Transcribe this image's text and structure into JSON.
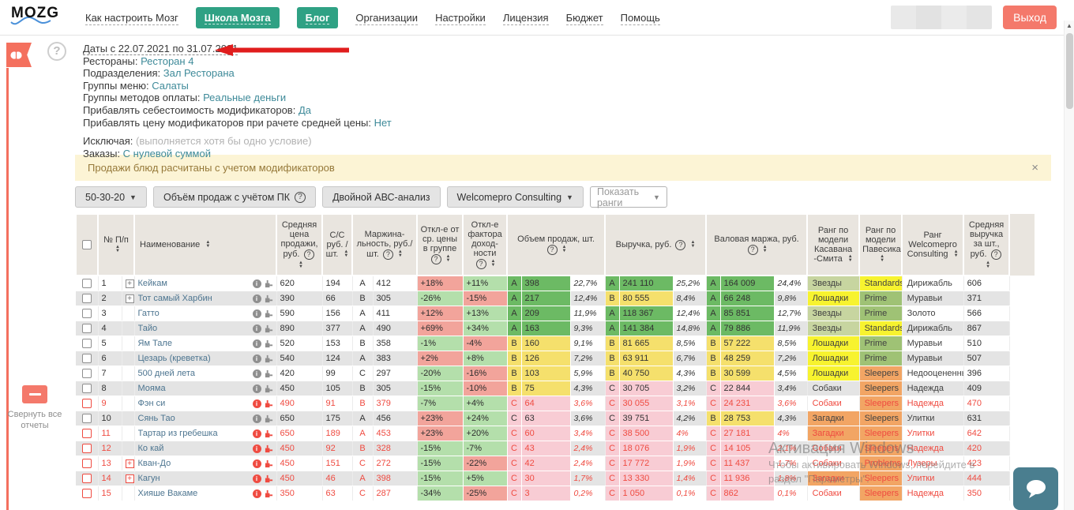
{
  "navbar": {
    "logo": "MOZG",
    "links": [
      {
        "label": "Как настроить Мозг",
        "style": "plain"
      },
      {
        "label": "Школа Мозга",
        "style": "green"
      },
      {
        "label": "Блог",
        "style": "green"
      },
      {
        "label": "Организации",
        "style": "plain"
      },
      {
        "label": "Настройки",
        "style": "plain"
      },
      {
        "label": "Лицензия",
        "style": "plain"
      },
      {
        "label": "Бюджет",
        "style": "plain"
      },
      {
        "label": "Помощь",
        "style": "plain"
      }
    ],
    "logout_label": "Выход"
  },
  "sidebar": {
    "collapse_label": "Свернуть все отчеты"
  },
  "filters": {
    "date_line": "Даты с 22.07.2021 по 31.07.2021",
    "lines": [
      {
        "label": "Рестораны:",
        "value": "Ресторан 4"
      },
      {
        "label": "Подразделения:",
        "value": "Зал Ресторана"
      },
      {
        "label": "Группы меню:",
        "value": "Салаты"
      },
      {
        "label": "Группы методов оплаты:",
        "value": "Реальные деньги"
      },
      {
        "label": "Прибавлять себестоимость модификаторов:",
        "value": "Да"
      },
      {
        "label": "Прибавлять цену модификаторов при рачете средней цены:",
        "value": "Нет"
      }
    ],
    "excluding_label": "Исключая:",
    "excluding_note": "(выполняется хотя бы одно условие)",
    "orders_label": "Заказы:",
    "orders_value": "С нулевой суммой"
  },
  "banner": {
    "text": "Продажи блюд расчитаны с учетом модификаторов",
    "close": "×"
  },
  "toolbar": {
    "buttons": [
      {
        "label": "50-30-20",
        "caret": true
      },
      {
        "label": "Объём продаж с учётом ПК",
        "help": true
      },
      {
        "label": "Двойной АВС-анализ"
      },
      {
        "label": "Welcomepro Consulting",
        "caret": true
      }
    ],
    "select_placeholder": "Показать ранги"
  },
  "table": {
    "headers": [
      {
        "checkbox": true,
        "span": 1
      },
      {
        "label": "№ П/п",
        "sort": true,
        "span": 2
      },
      {
        "label": "Наименование",
        "sort": true,
        "span": 1,
        "align": "left"
      },
      {
        "label": "Средняя цена продажи, руб.",
        "sort": true,
        "help": true,
        "span": 1
      },
      {
        "label": "С/С руб. /шт.",
        "sort": true,
        "span": 1
      },
      {
        "label": "Маржина- льность, руб./шт.",
        "sort": true,
        "help": true,
        "span": 2
      },
      {
        "label": "Откл-е от ср. цены в группе",
        "sort": true,
        "help": true,
        "span": 1
      },
      {
        "label": "Откл-е фактора доход- ности",
        "sort": true,
        "help": true,
        "span": 1
      },
      {
        "label": "Объем продаж, шт.",
        "sort": true,
        "help": true,
        "span": 3,
        "gsep": true
      },
      {
        "label": "Выручка, руб.",
        "sort": true,
        "help": true,
        "span": 3
      },
      {
        "label": "Валовая маржа, руб.",
        "sort": true,
        "help": true,
        "span": 3
      },
      {
        "label": "Ранг по модели Касавана -Смита",
        "sort": true,
        "span": 1,
        "gsep": true
      },
      {
        "label": "Ранг по модели Павесика",
        "sort": true,
        "span": 1
      },
      {
        "label": "Ранг Welcomepro Consulting",
        "sort": true,
        "span": 1
      },
      {
        "label": "Средняя выручка за шт., руб.",
        "sort": true,
        "help": true,
        "span": 1
      }
    ],
    "rows": [
      {
        "num": "1",
        "flagged": false,
        "expandable": true,
        "name": "Кейкам",
        "avg_price": "620",
        "cost": "194",
        "margin_letter": "A",
        "margin": "412",
        "dev_price": {
          "v": "+18%",
          "c": "red"
        },
        "dev_profit": {
          "v": "+11%",
          "c": "green"
        },
        "vol": {
          "l": "A",
          "v": "398",
          "p": "22,7%"
        },
        "rev": {
          "l": "A",
          "v": "241 110",
          "p": "25,2%"
        },
        "gross": {
          "l": "A",
          "v": "164 009",
          "p": "24,4%"
        },
        "rank_ks": {
          "t": "Звезды",
          "bg": "olive"
        },
        "rank_pv": {
          "t": "Standards",
          "bg": "yellow"
        },
        "rank_wp": "Дирижабль",
        "avg_rev": "606"
      },
      {
        "num": "2",
        "flagged": false,
        "expandable": true,
        "name": "Тот самый Харбин",
        "avg_price": "390",
        "cost": "66",
        "margin_letter": "B",
        "margin": "305",
        "dev_price": {
          "v": "-26%",
          "c": "green"
        },
        "dev_profit": {
          "v": "-15%",
          "c": "red"
        },
        "vol": {
          "l": "A",
          "v": "217",
          "p": "12,4%"
        },
        "rev": {
          "l": "B",
          "v": "80 555",
          "p": "8,4%"
        },
        "gross": {
          "l": "A",
          "v": "66 248",
          "p": "9,8%"
        },
        "rank_ks": {
          "t": "Лошадки",
          "bg": "yellow"
        },
        "rank_pv": {
          "t": "Prime",
          "bg": "green"
        },
        "rank_wp": "Муравьи",
        "avg_rev": "371"
      },
      {
        "num": "3",
        "flagged": false,
        "expandable": false,
        "name": "Гатто",
        "avg_price": "590",
        "cost": "156",
        "margin_letter": "A",
        "margin": "411",
        "dev_price": {
          "v": "+12%",
          "c": "red"
        },
        "dev_profit": {
          "v": "+13%",
          "c": "green"
        },
        "vol": {
          "l": "A",
          "v": "209",
          "p": "11,9%"
        },
        "rev": {
          "l": "A",
          "v": "118 367",
          "p": "12,4%"
        },
        "gross": {
          "l": "A",
          "v": "85 851",
          "p": "12,7%"
        },
        "rank_ks": {
          "t": "Звезды",
          "bg": "olive"
        },
        "rank_pv": {
          "t": "Prime",
          "bg": "green"
        },
        "rank_wp": "Золото",
        "avg_rev": "566"
      },
      {
        "num": "4",
        "flagged": false,
        "expandable": false,
        "name": "Тайо",
        "avg_price": "890",
        "cost": "377",
        "margin_letter": "A",
        "margin": "490",
        "dev_price": {
          "v": "+69%",
          "c": "red"
        },
        "dev_profit": {
          "v": "+34%",
          "c": "green"
        },
        "vol": {
          "l": "A",
          "v": "163",
          "p": "9,3%"
        },
        "rev": {
          "l": "A",
          "v": "141 384",
          "p": "14,8%"
        },
        "gross": {
          "l": "A",
          "v": "79 886",
          "p": "11,9%"
        },
        "rank_ks": {
          "t": "Звезды",
          "bg": "olive"
        },
        "rank_pv": {
          "t": "Standards",
          "bg": "yellow"
        },
        "rank_wp": "Дирижабль",
        "avg_rev": "867"
      },
      {
        "num": "5",
        "flagged": false,
        "expandable": false,
        "name": "Ям Тале",
        "avg_price": "520",
        "cost": "153",
        "margin_letter": "B",
        "margin": "358",
        "dev_price": {
          "v": "-1%",
          "c": "green"
        },
        "dev_profit": {
          "v": "-4%",
          "c": "red"
        },
        "vol": {
          "l": "B",
          "v": "160",
          "p": "9,1%"
        },
        "rev": {
          "l": "B",
          "v": "81 665",
          "p": "8,5%"
        },
        "gross": {
          "l": "B",
          "v": "57 222",
          "p": "8,5%"
        },
        "rank_ks": {
          "t": "Лошадки",
          "bg": "yellow"
        },
        "rank_pv": {
          "t": "Prime",
          "bg": "green"
        },
        "rank_wp": "Муравьи",
        "avg_rev": "510"
      },
      {
        "num": "6",
        "flagged": false,
        "expandable": false,
        "name": "Цезарь (креветка)",
        "avg_price": "540",
        "cost": "124",
        "margin_letter": "A",
        "margin": "383",
        "dev_price": {
          "v": "+2%",
          "c": "red"
        },
        "dev_profit": {
          "v": "+8%",
          "c": "green"
        },
        "vol": {
          "l": "B",
          "v": "126",
          "p": "7,2%"
        },
        "rev": {
          "l": "B",
          "v": "63 911",
          "p": "6,7%"
        },
        "gross": {
          "l": "B",
          "v": "48 259",
          "p": "7,2%"
        },
        "rank_ks": {
          "t": "Лошадки",
          "bg": "yellow"
        },
        "rank_pv": {
          "t": "Prime",
          "bg": "green"
        },
        "rank_wp": "Муравьи",
        "avg_rev": "507"
      },
      {
        "num": "7",
        "flagged": false,
        "expandable": false,
        "name": "500 дней лета",
        "avg_price": "420",
        "cost": "99",
        "margin_letter": "C",
        "margin": "297",
        "dev_price": {
          "v": "-20%",
          "c": "green"
        },
        "dev_profit": {
          "v": "-16%",
          "c": "red"
        },
        "vol": {
          "l": "B",
          "v": "103",
          "p": "5,9%"
        },
        "rev": {
          "l": "B",
          "v": "40 750",
          "p": "4,3%"
        },
        "gross": {
          "l": "B",
          "v": "30 599",
          "p": "4,5%"
        },
        "rank_ks": {
          "t": "Лошадки",
          "bg": "yellow"
        },
        "rank_pv": {
          "t": "Sleepers",
          "bg": "orange"
        },
        "rank_wp": "Недооцененные",
        "avg_rev": "396"
      },
      {
        "num": "8",
        "flagged": false,
        "expandable": false,
        "name": "Мояма",
        "avg_price": "450",
        "cost": "105",
        "margin_letter": "B",
        "margin": "305",
        "dev_price": {
          "v": "-15%",
          "c": "green"
        },
        "dev_profit": {
          "v": "-10%",
          "c": "red"
        },
        "vol": {
          "l": "B",
          "v": "75",
          "p": "4,3%"
        },
        "rev": {
          "l": "C",
          "v": "30 705",
          "p": "3,2%"
        },
        "gross": {
          "l": "C",
          "v": "22 844",
          "p": "3,4%"
        },
        "rank_ks": {
          "t": "Собаки",
          "bg": "none"
        },
        "rank_pv": {
          "t": "Sleepers",
          "bg": "orange"
        },
        "rank_wp": "Надежда",
        "avg_rev": "409"
      },
      {
        "num": "9",
        "flagged": true,
        "expandable": false,
        "name": "Фэн си",
        "avg_price": "490",
        "cost": "91",
        "margin_letter": "B",
        "margin": "379",
        "dev_price": {
          "v": "-7%",
          "c": "green"
        },
        "dev_profit": {
          "v": "+4%",
          "c": "green"
        },
        "vol": {
          "l": "C",
          "v": "64",
          "p": "3,6%"
        },
        "rev": {
          "l": "C",
          "v": "30 055",
          "p": "3,1%"
        },
        "gross": {
          "l": "C",
          "v": "24 231",
          "p": "3,6%"
        },
        "rank_ks": {
          "t": "Собаки",
          "bg": "none"
        },
        "rank_pv": {
          "t": "Sleepers",
          "bg": "orange"
        },
        "rank_wp": "Надежда",
        "avg_rev": "470"
      },
      {
        "num": "10",
        "flagged": false,
        "expandable": false,
        "name": "Сянь Тао",
        "avg_price": "650",
        "cost": "175",
        "margin_letter": "A",
        "margin": "456",
        "dev_price": {
          "v": "+23%",
          "c": "red"
        },
        "dev_profit": {
          "v": "+24%",
          "c": "green"
        },
        "vol": {
          "l": "C",
          "v": "63",
          "p": "3,6%"
        },
        "rev": {
          "l": "C",
          "v": "39 751",
          "p": "4,2%"
        },
        "gross": {
          "l": "B",
          "v": "28 753",
          "p": "4,3%"
        },
        "rank_ks": {
          "t": "Загадки",
          "bg": "orange"
        },
        "rank_pv": {
          "t": "Sleepers",
          "bg": "orange"
        },
        "rank_wp": "Улитки",
        "avg_rev": "631"
      },
      {
        "num": "11",
        "flagged": true,
        "expandable": false,
        "name": "Тартар из гребешка",
        "avg_price": "650",
        "cost": "189",
        "margin_letter": "A",
        "margin": "453",
        "dev_price": {
          "v": "+23%",
          "c": "red"
        },
        "dev_profit": {
          "v": "+20%",
          "c": "green"
        },
        "vol": {
          "l": "C",
          "v": "60",
          "p": "3,4%"
        },
        "rev": {
          "l": "C",
          "v": "38 500",
          "p": "4%"
        },
        "gross": {
          "l": "C",
          "v": "27 181",
          "p": "4%"
        },
        "rank_ks": {
          "t": "Загадки",
          "bg": "orange"
        },
        "rank_pv": {
          "t": "Sleepers",
          "bg": "orange"
        },
        "rank_wp": "Улитки",
        "avg_rev": "642"
      },
      {
        "num": "12",
        "flagged": true,
        "expandable": false,
        "name": "Ко кай",
        "avg_price": "450",
        "cost": "92",
        "margin_letter": "B",
        "margin": "328",
        "dev_price": {
          "v": "-15%",
          "c": "green"
        },
        "dev_profit": {
          "v": "-7%",
          "c": "green"
        },
        "vol": {
          "l": "C",
          "v": "43",
          "p": "2,4%"
        },
        "rev": {
          "l": "C",
          "v": "18 076",
          "p": "1,9%"
        },
        "gross": {
          "l": "C",
          "v": "14 105",
          "p": "2,1%"
        },
        "rank_ks": {
          "t": "Собаки",
          "bg": "none"
        },
        "rank_pv": {
          "t": "Sleepers",
          "bg": "orange"
        },
        "rank_wp": "Надежда",
        "avg_rev": "420"
      },
      {
        "num": "13",
        "flagged": true,
        "expandable": true,
        "name": "Кван-До",
        "avg_price": "450",
        "cost": "151",
        "margin_letter": "C",
        "margin": "272",
        "dev_price": {
          "v": "-15%",
          "c": "green"
        },
        "dev_profit": {
          "v": "-22%",
          "c": "red"
        },
        "vol": {
          "l": "C",
          "v": "42",
          "p": "2,4%"
        },
        "rev": {
          "l": "C",
          "v": "17 772",
          "p": "1,9%"
        },
        "gross": {
          "l": "C",
          "v": "11 437",
          "p": "1,7%"
        },
        "rank_ks": {
          "t": "Собаки",
          "bg": "none"
        },
        "rank_pv": {
          "t": "Problems",
          "bg": "orange"
        },
        "rank_wp": "Лузеры",
        "avg_rev": "423"
      },
      {
        "num": "14",
        "flagged": true,
        "expandable": true,
        "name": "Кагун",
        "avg_price": "450",
        "cost": "46",
        "margin_letter": "A",
        "margin": "398",
        "dev_price": {
          "v": "-15%",
          "c": "green"
        },
        "dev_profit": {
          "v": "+5%",
          "c": "green"
        },
        "vol": {
          "l": "C",
          "v": "30",
          "p": "1,7%"
        },
        "rev": {
          "l": "C",
          "v": "13 330",
          "p": "1,4%"
        },
        "gross": {
          "l": "C",
          "v": "11 936",
          "p": "1,8%"
        },
        "rank_ks": {
          "t": "Загадки",
          "bg": "orange"
        },
        "rank_pv": {
          "t": "Sleepers",
          "bg": "orange"
        },
        "rank_wp": "Улитки",
        "avg_rev": "444"
      },
      {
        "num": "15",
        "flagged": true,
        "expandable": false,
        "name": "Хияше Вакаме",
        "avg_price": "350",
        "cost": "63",
        "margin_letter": "C",
        "margin": "287",
        "dev_price": {
          "v": "-34%",
          "c": "green"
        },
        "dev_profit": {
          "v": "-25%",
          "c": "red"
        },
        "vol": {
          "l": "C",
          "v": "3",
          "p": "0,2%"
        },
        "rev": {
          "l": "C",
          "v": "1 050",
          "p": "0,1%"
        },
        "gross": {
          "l": "C",
          "v": "862",
          "p": "0,1%"
        },
        "rank_ks": {
          "t": "Собаки",
          "bg": "none"
        },
        "rank_pv": {
          "t": "Sleepers",
          "bg": "orange"
        },
        "rank_wp": "Надежда",
        "avg_rev": "350"
      }
    ]
  },
  "watermark": {
    "line1": "Активация Windows",
    "line2": "Чтобы активировать Windows, перейдите в",
    "line3": "раздел \"Параметры\"."
  },
  "colors": {
    "brand-green": "#2fa184",
    "logout-red": "#f4796b",
    "ribbon-red": "#f4705e",
    "link-teal": "#3e8a99",
    "name-blue": "#4d7590",
    "banner-bg": "#fcf4d5",
    "banner-text": "#96793a",
    "header-bg": "#e9e5df",
    "row-alt": "#e4e4e4",
    "cell-a": "#6cba64",
    "cell-b": "#f5e06c",
    "cell-c": "#f8ccd4",
    "dev-green": "#b4dfab",
    "dev-red": "#f2a49b",
    "rank-olive": "#c7d5a0",
    "rank-yellow": "#f7f32f",
    "rank-green": "#9fc275",
    "rank-orange": "#f2a564",
    "flag-red": "#ef4b41",
    "arrow-red": "#e01d1d",
    "chat-teal": "#4a7e8f"
  }
}
